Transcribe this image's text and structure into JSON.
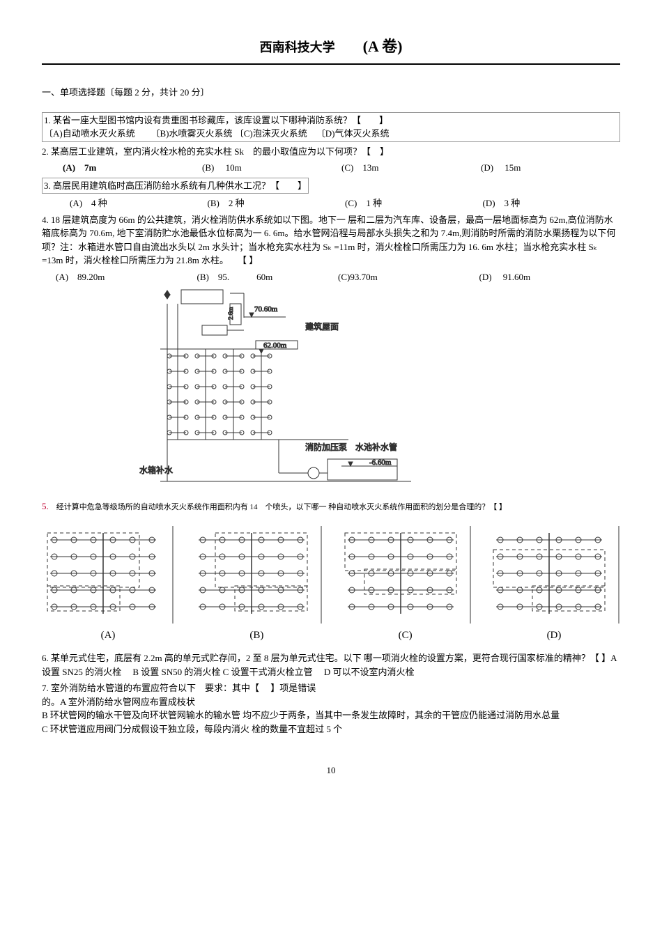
{
  "header": {
    "university": "西南科技大学",
    "paper": "(A 卷)"
  },
  "section1_title": "一、单项选择题〔每题 2 分，共计 20 分〕",
  "q1": {
    "text": "1. 某省一座大型图书馆内设有贵重图书珍藏库，该库设置以下哪种消防系统？【　　】",
    "a": "〔A)自动喷水灭火系统",
    "b": "〔B)水喷雾灭火系统",
    "c": "〔C)泡沫灭火系统",
    "d": "〔D)气体灭火系统"
  },
  "q2": {
    "text": "2. 某高层工业建筑，室内消火栓水枪的充实水柱 Sk　的最小取值应为以下何项？【　】",
    "a": "(A) 7m",
    "b": "(B)  10m",
    "c": "(C) 13m",
    "d": "(D)  15m"
  },
  "q3": {
    "text": "3. 高层民用建筑临时高压消防给水系统有几种供水工况？【　　】",
    "a": "(A) 4 种",
    "b": "(B) 2 种",
    "c": "(C) 1 种",
    "d": "(D) 3 种"
  },
  "q4": {
    "text": "4. 18 层建筑高度为 66m 的公共建筑，消火栓消防供水系统如以下图。地下一 层和二层为汽车库、设备层，最高一层地面标高为 62m,高位消防水箱底标高为 70.6m, 地下室消防贮水池最低水位标高为一 6. 6m。给水管网沿程与局部水头损失之和为 7.4m,则消防时所需的消防水栗扬程为以下何项？注：水箱进水管口自由流出水头以 2m 水头计；当水枪充实水柱为 Sₖ =11m 时，消火栓栓口所需压力为 16. 6m 水柱；当水枪充实水柱 Sₖ =13m 时，消火栓栓口所需压力为 21.8m 水柱。　　【 】",
    "a": "(A) 89.20m",
    "b": "(B) 95.   60m",
    "c": "(C)93.70m",
    "d": "(D)  91.60m"
  },
  "fig1": {
    "label_70_60": "70.60m",
    "label_roof": "建筑屋面",
    "label_62_00": "62.00m",
    "label_pump": "消防加压泵",
    "label_pipe": "水池补水管",
    "label_neg6_60": "-6.60m",
    "label_tank_supply": "水箱补水",
    "label_2_6m": "2.6m"
  },
  "q5": {
    "num": "5.",
    "text": "经计算中危急等级场所的自动喷水灭火系统作用面积内有 14　个喷头，以下哪一 种自动喷水灭火系统作用面积的划分是合理的？【 】"
  },
  "fig2": {
    "a": "(A)",
    "b": "(B)",
    "c": "(C)",
    "d": "(D)"
  },
  "q6": "6. 某单元式住宅，底层有 2.2m 高的单元式贮存间，2 至 8 层为单元式住宅。以下 哪一项消火栓的设置方案，更符合现行国家标准的精神？【 】A 设置 SN25 的消火栓　 B 设置 SN50 的消火栓 C 设置干式消火栓立管　 D 可以不设室内消火栓",
  "q7": {
    "line1": "7. 室外消防给水管道的布置应符合以下　要求：其中【　 】项是错误",
    "line2": "的。A 室外消防给水管网应布置成枝状",
    "line3": "B 环状管网的输水干管及向环状管网输水的输水管 均不应少于两条，当其中一条发生故障时，其余的干管应仍能通过消防用水总量",
    "line4": "C 环状管道应用阀门分成假设干独立段，每段内消火 栓的数量不宜超过 5 个"
  },
  "pagenum": "10",
  "colors": {
    "text": "#000000",
    "rule": "#000000",
    "box": "#999999",
    "svg_stroke": "#333333"
  }
}
